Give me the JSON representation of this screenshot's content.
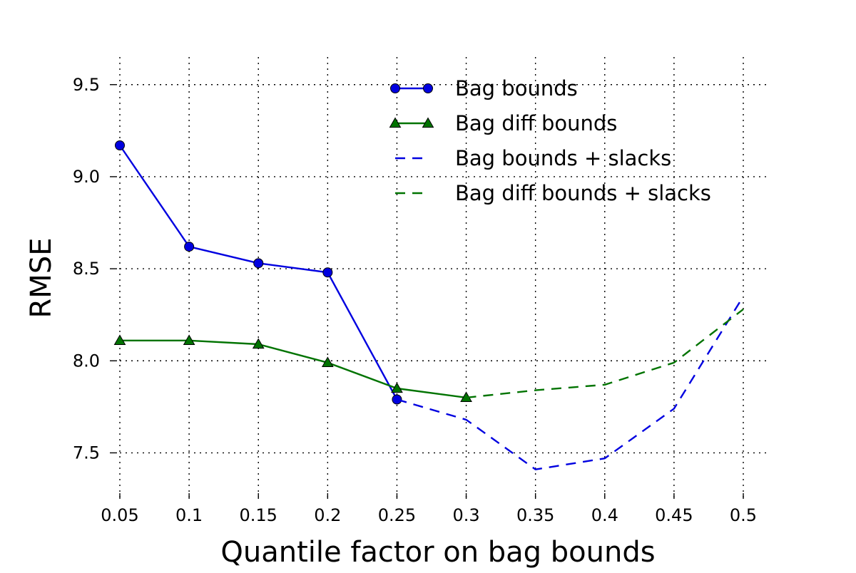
{
  "chart_data": {
    "type": "line",
    "title": "",
    "xlabel": "Quantile factor on bag bounds",
    "ylabel": "RMSE",
    "xlim": [
      0.05,
      0.5
    ],
    "ylim": [
      7.25,
      9.65
    ],
    "x_ticks": [
      0.05,
      0.1,
      0.15,
      0.2,
      0.25,
      0.3,
      0.35,
      0.4,
      0.45,
      0.5
    ],
    "x_tick_labels": [
      "0.05",
      "0.1",
      "0.15",
      "0.2",
      "0.25",
      "0.3",
      "0.35",
      "0.4",
      "0.45",
      "0.5"
    ],
    "y_ticks": [
      7.5,
      8.0,
      8.5,
      9.0,
      9.5
    ],
    "y_tick_labels": [
      "7.5",
      "8.0",
      "8.5",
      "9.0",
      "9.5"
    ],
    "grid": true,
    "legend_position": "top-right",
    "series": [
      {
        "name": "Bag bounds",
        "color": "#0000e0",
        "line_style": "solid",
        "marker": "circle",
        "x": [
          0.05,
          0.1,
          0.15,
          0.2,
          0.25
        ],
        "values": [
          9.17,
          8.62,
          8.53,
          8.48,
          7.79
        ]
      },
      {
        "name": "Bag diff bounds",
        "color": "#007300",
        "line_style": "solid",
        "marker": "triangle",
        "x": [
          0.05,
          0.1,
          0.15,
          0.2,
          0.25,
          0.3
        ],
        "values": [
          8.11,
          8.11,
          8.09,
          7.99,
          7.85,
          7.8
        ]
      },
      {
        "name": "Bag bounds + slacks",
        "color": "#0000e0",
        "line_style": "dashed",
        "marker": "none",
        "x": [
          0.25,
          0.3,
          0.35,
          0.4,
          0.45,
          0.5
        ],
        "values": [
          7.79,
          7.68,
          7.41,
          7.47,
          7.74,
          8.35
        ]
      },
      {
        "name": "Bag diff bounds + slacks",
        "color": "#007300",
        "line_style": "dashed",
        "marker": "none",
        "x": [
          0.3,
          0.35,
          0.4,
          0.45,
          0.5
        ],
        "values": [
          7.8,
          7.84,
          7.87,
          7.99,
          8.28
        ]
      }
    ]
  }
}
